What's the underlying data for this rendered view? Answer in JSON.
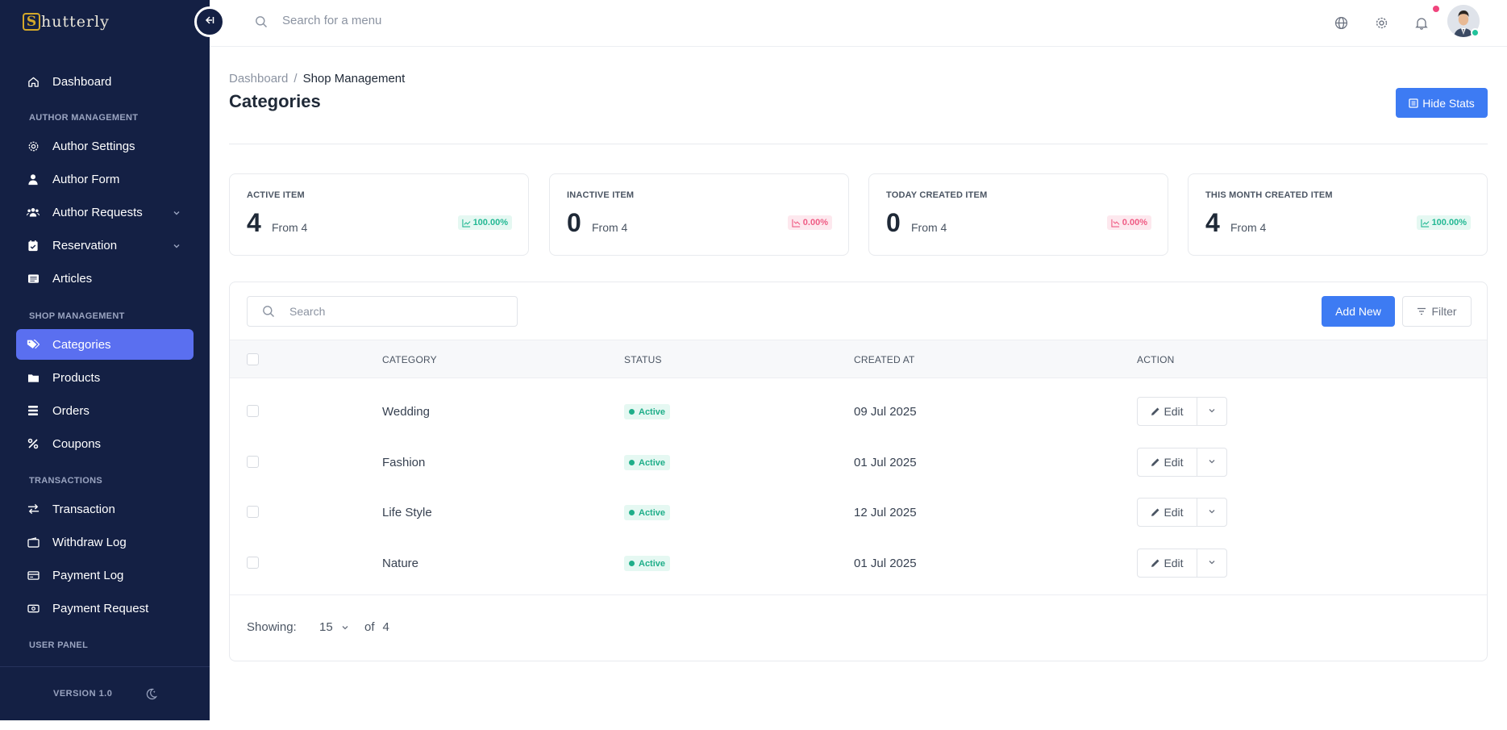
{
  "app": {
    "logo_letter": "S",
    "logo_text": "hutterly"
  },
  "sidebar": {
    "items": [
      {
        "label": "Dashboard"
      },
      {
        "label": "Author Settings"
      },
      {
        "label": "Author Form"
      },
      {
        "label": "Author Requests"
      },
      {
        "label": "Reservation"
      },
      {
        "label": "Articles"
      },
      {
        "label": "Categories"
      },
      {
        "label": "Products"
      },
      {
        "label": "Orders"
      },
      {
        "label": "Coupons"
      },
      {
        "label": "Transaction"
      },
      {
        "label": "Withdraw Log"
      },
      {
        "label": "Payment Log"
      },
      {
        "label": "Payment Request"
      }
    ],
    "sections": [
      "AUTHOR MANAGEMENT",
      "SHOP MANAGEMENT",
      "TRANSACTIONS",
      "USER PANEL"
    ],
    "version": "VERSION 1.0",
    "active_item": "Categories"
  },
  "topbar": {
    "search_placeholder": "Search for a menu"
  },
  "breadcrumb": {
    "root": "Dashboard",
    "separator": "/",
    "current": "Shop Management"
  },
  "page": {
    "title": "Categories",
    "hide_stats_label": "Hide Stats"
  },
  "stats": [
    {
      "label": "ACTIVE ITEM",
      "value": "4",
      "from": "From 4",
      "change": "100.00%",
      "trend": "up"
    },
    {
      "label": "INACTIVE ITEM",
      "value": "0",
      "from": "From 4",
      "change": "0.00%",
      "trend": "down"
    },
    {
      "label": "TODAY CREATED ITEM",
      "value": "0",
      "from": "From 4",
      "change": "0.00%",
      "trend": "down"
    },
    {
      "label": "THIS MONTH CREATED ITEM",
      "value": "4",
      "from": "From 4",
      "change": "100.00%",
      "trend": "up"
    }
  ],
  "table": {
    "search_placeholder": "Search",
    "add_new_label": "Add New",
    "filter_label": "Filter",
    "columns": [
      "CATEGORY",
      "STATUS",
      "CREATED AT",
      "ACTION"
    ],
    "rows": [
      {
        "category": "Wedding",
        "status": "Active",
        "created_at": "09 Jul 2025",
        "action": "Edit"
      },
      {
        "category": "Fashion",
        "status": "Active",
        "created_at": "01 Jul 2025",
        "action": "Edit"
      },
      {
        "category": "Life Style",
        "status": "Active",
        "created_at": "12 Jul 2025",
        "action": "Edit"
      },
      {
        "category": "Nature",
        "status": "Active",
        "created_at": "01 Jul 2025",
        "action": "Edit"
      }
    ],
    "footer": {
      "showing_label": "Showing:",
      "per_page": "15",
      "of_label": "of",
      "total": "4"
    }
  },
  "colors": {
    "sidebar_bg": "#142044",
    "active_item": "#5a6ff0",
    "primary": "#3d7bf3",
    "success": "#22b893",
    "danger": "#ef5b84"
  }
}
